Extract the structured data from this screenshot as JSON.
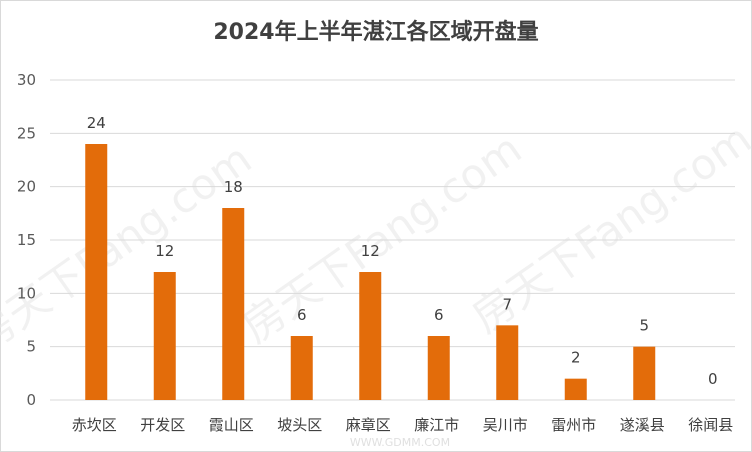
{
  "watermarks": [
    "房天下Fang.com",
    "房天下Fang.com",
    "房天下Fang.com",
    "WWW.GDMM.COM"
  ],
  "chart_data": {
    "type": "bar",
    "title": "2024年上半年湛江各区域开盘量",
    "categories": [
      "赤坎区",
      "开发区",
      "霞山区",
      "坡头区",
      "麻章区",
      "廉江市",
      "吴川市",
      "雷州市",
      "遂溪县",
      "徐闻县"
    ],
    "values": [
      24,
      12,
      18,
      6,
      12,
      6,
      7,
      2,
      5,
      0
    ],
    "ylim": [
      0,
      30
    ],
    "yticks": [
      0,
      5,
      10,
      15,
      20,
      25,
      30
    ],
    "grid": true,
    "legend": "none",
    "xlabel": "",
    "ylabel": "",
    "colors": {
      "bar": "#e36c0a",
      "grid": "#d9d9d9",
      "text": "#404040"
    }
  }
}
